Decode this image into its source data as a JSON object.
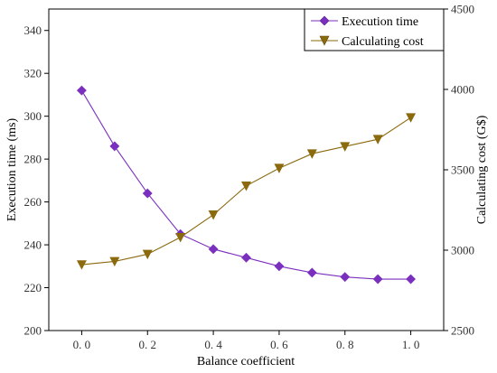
{
  "chart_data": {
    "type": "line",
    "x": [
      0.0,
      0.1,
      0.2,
      0.3,
      0.4,
      0.5,
      0.6,
      0.7,
      0.8,
      0.9,
      1.0
    ],
    "xlabel": "Balance coefficient",
    "xlim": [
      -0.1,
      1.1
    ],
    "xticks": [
      0.0,
      0.2,
      0.4,
      0.6,
      0.8,
      1.0
    ],
    "xtick_labels": [
      "0. 0",
      "0. 2",
      "0. 4",
      "0. 6",
      "0. 8",
      "1. 0"
    ],
    "y_left": {
      "label": "Execution time (ms)",
      "lim": [
        200,
        350
      ],
      "ticks": [
        200,
        220,
        240,
        260,
        280,
        300,
        320,
        340
      ],
      "tick_labels": [
        "200",
        "220",
        "240",
        "260",
        "280",
        "300",
        "320",
        "340"
      ]
    },
    "y_right": {
      "label": "Calculating cost (G$)",
      "lim": [
        2500,
        4500
      ],
      "ticks": [
        2500,
        3000,
        3500,
        4000,
        4500
      ],
      "tick_labels": [
        "2500",
        "3000",
        "3500",
        "4000",
        "4500"
      ]
    },
    "series": [
      {
        "name": "Execution time",
        "axis": "left",
        "marker": "diamond",
        "color": "#7b2fbe",
        "values": [
          312,
          286,
          264,
          245,
          238,
          234,
          230,
          227,
          225,
          224,
          224
        ]
      },
      {
        "name": "Calculating cost",
        "axis": "right",
        "marker": "triangle-down",
        "color": "#8b6a0e",
        "values": [
          2910,
          2930,
          2975,
          3080,
          3220,
          3400,
          3510,
          3600,
          3645,
          3690,
          3825
        ]
      }
    ],
    "legend": "top-right",
    "grid": false
  }
}
